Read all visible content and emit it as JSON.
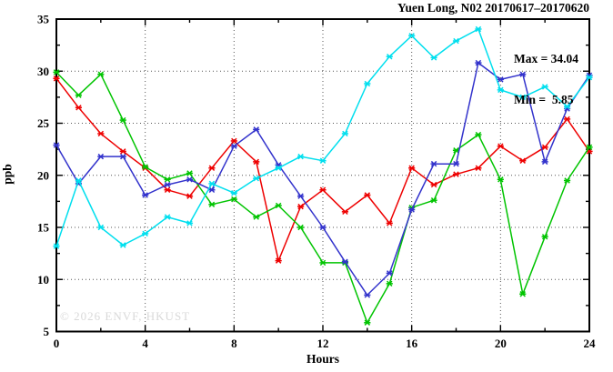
{
  "title": "Yuen Long, N02 20170617–20170620",
  "annotation": {
    "max_line": "Max = 34.04",
    "min_line": "Min =  5.85"
  },
  "watermark": "© 2026 ENVF, HKUST",
  "chart_data": {
    "type": "line",
    "title": "Yuen Long, N02 20170617–20170620",
    "xlabel": "Hours",
    "ylabel": "ppb",
    "xlim": [
      0,
      24
    ],
    "ylim": [
      5,
      35
    ],
    "x_major_ticks": [
      0,
      4,
      8,
      12,
      16,
      20,
      24
    ],
    "y_major_ticks": [
      5,
      10,
      15,
      20,
      25,
      30,
      35
    ],
    "x_minor_step": 2,
    "y_minor_step": 2.5,
    "grid": "dotted lines at major ticks, both axes",
    "legend_position": "none",
    "stats": {
      "max": 34.04,
      "min": 5.85
    },
    "x": [
      0,
      1,
      2,
      3,
      4,
      5,
      6,
      7,
      8,
      9,
      10,
      11,
      12,
      13,
      14,
      15,
      16,
      17,
      18,
      19,
      20,
      21,
      22,
      23,
      24
    ],
    "series": [
      {
        "name": "red",
        "color": "#ee0000",
        "values": [
          29.3,
          26.5,
          24.0,
          22.3,
          20.7,
          18.6,
          18.0,
          20.7,
          23.3,
          21.3,
          11.8,
          17.0,
          18.6,
          16.5,
          18.1,
          15.4,
          20.7,
          19.1,
          20.1,
          20.7,
          22.8,
          21.4,
          22.7,
          25.4,
          22.3
        ]
      },
      {
        "name": "green",
        "color": "#00c400",
        "values": [
          29.9,
          27.7,
          29.7,
          25.3,
          20.8,
          19.6,
          20.2,
          17.2,
          17.7,
          16.0,
          17.1,
          15.0,
          11.6,
          11.6,
          5.85,
          9.6,
          16.9,
          17.6,
          22.4,
          23.9,
          19.6,
          8.6,
          14.1,
          19.5,
          22.7
        ]
      },
      {
        "name": "blue",
        "color": "#3333cc",
        "values": [
          22.9,
          19.2,
          21.8,
          21.8,
          18.1,
          19.1,
          19.6,
          18.6,
          22.8,
          24.4,
          21.0,
          18.0,
          15.0,
          11.7,
          8.5,
          10.6,
          16.7,
          21.1,
          21.1,
          30.8,
          29.2,
          29.7,
          21.3,
          26.4,
          29.6
        ]
      },
      {
        "name": "cyan",
        "color": "#00dfee",
        "values": [
          13.2,
          19.5,
          15.0,
          13.3,
          14.4,
          16.0,
          15.4,
          19.2,
          18.3,
          19.7,
          20.7,
          21.8,
          21.4,
          24.0,
          28.8,
          31.4,
          33.4,
          31.3,
          32.9,
          34.04,
          28.2,
          27.5,
          28.5,
          26.6,
          29.4
        ]
      }
    ]
  }
}
